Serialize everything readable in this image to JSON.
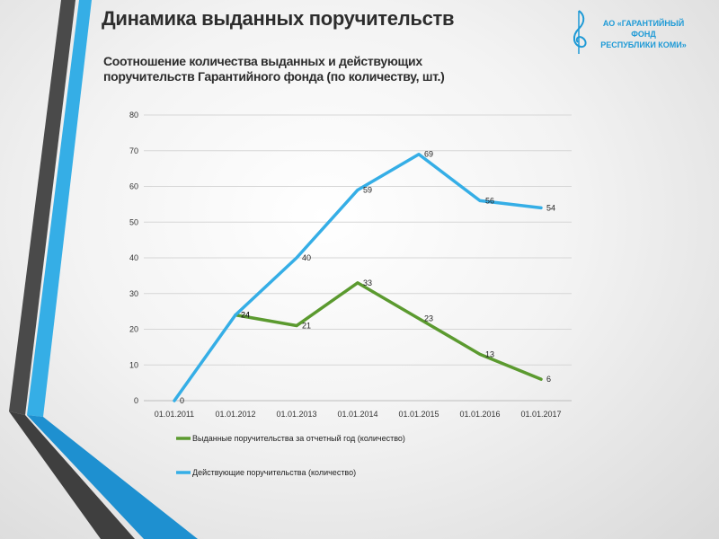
{
  "page": {
    "title": "Динамика выданных поручительств",
    "subtitle": "Соотношение количества выданных и действующих поручительств Гарантийного фонда (по количеству, шт.)"
  },
  "logo": {
    "line1": "АО «ГАРАНТИЙНЫЙ  ФОНД",
    "line2": "РЕСПУБЛИКИ  КОМИ»"
  },
  "colors": {
    "issued": "#5b9a2f",
    "active": "#35aee6",
    "accent_dark": "#3f3f3f"
  },
  "chart_data": {
    "type": "line",
    "title": "Соотношение количества выданных и действующих поручительств Гарантийного фонда (по количеству, шт.)",
    "categories": [
      "01.01.2011",
      "01.01.2012",
      "01.01.2013",
      "01.01.2014",
      "01.01.2015",
      "01.01.2016",
      "01.01.2017"
    ],
    "yticks": [
      0,
      10,
      20,
      30,
      40,
      50,
      60,
      70,
      80
    ],
    "ylim": [
      0,
      80
    ],
    "grid": true,
    "legend_position": "bottom",
    "series": [
      {
        "name": "Выданные поручительства за отчетный год (количество)",
        "color": "#5b9a2f",
        "values": [
          null,
          24,
          21,
          33,
          23,
          13,
          6
        ]
      },
      {
        "name": "Действующие поручительства (количество)",
        "color": "#35aee6",
        "values": [
          0,
          24,
          40,
          59,
          69,
          56,
          54
        ]
      }
    ]
  }
}
